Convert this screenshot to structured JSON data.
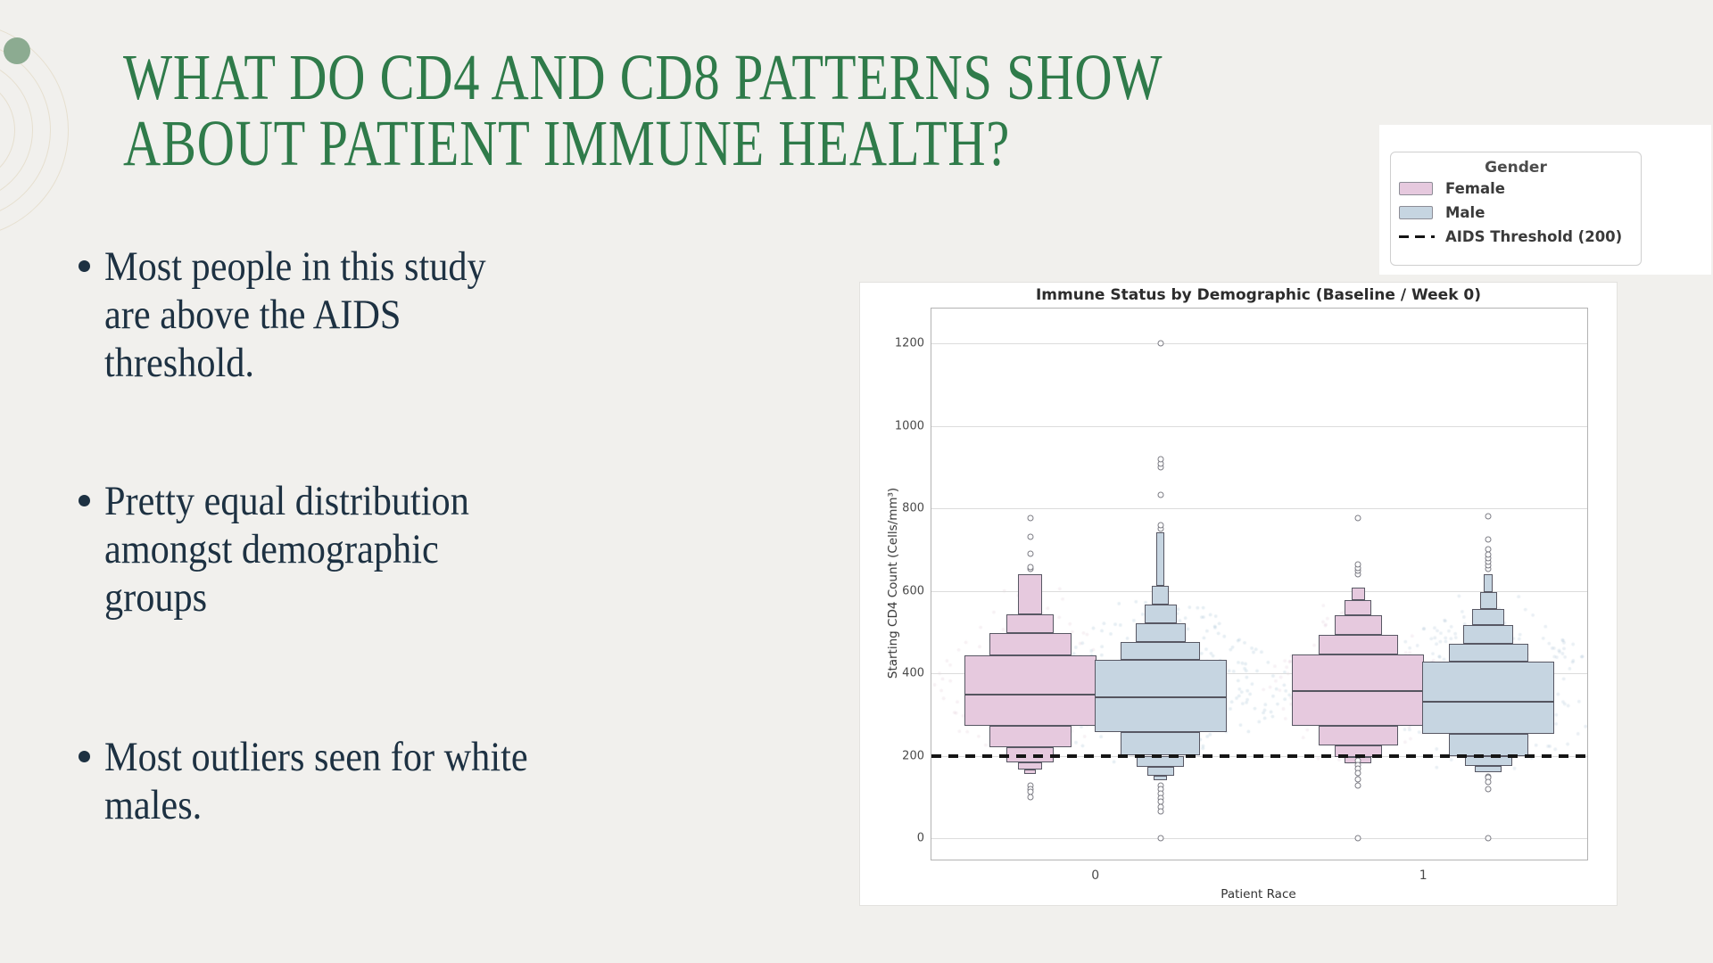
{
  "slide": {
    "background_color": "#f1f0ed",
    "accent_circle_color": "#8cab91",
    "title": {
      "color": "#2f7b4a",
      "lines": [
        "WHAT DO CD4 AND CD8 PATTERNS SHOW",
        "ABOUT PATIENT IMMUNE HEALTH?"
      ]
    },
    "bullets": {
      "color": "#1d3142",
      "items": [
        {
          "lines": [
            "Most people in this study",
            "are above the AIDS",
            "threshold."
          ]
        },
        {
          "lines": [
            "Pretty equal distribution",
            "amongst demographic",
            "groups"
          ]
        },
        {
          "lines": [
            "Most outliers seen for white",
            "males."
          ]
        }
      ]
    }
  },
  "legend": {
    "title": "Gender",
    "items": [
      {
        "label": "Female",
        "swatch": "box",
        "color": "#e6c9de"
      },
      {
        "label": "Male",
        "swatch": "box",
        "color": "#c6d5e1"
      },
      {
        "label": "AIDS Threshold (200)",
        "swatch": "dashed-line",
        "color": "#141414"
      }
    ]
  },
  "chart_data": {
    "type": "boxen",
    "title": "Immune Status by Demographic (Baseline / Week 0)",
    "xlabel": "Patient Race",
    "ylabel": "Starting CD4 Count (Cells/mm³)",
    "x_ticklabels": [
      "0",
      "1"
    ],
    "y_ticks": [
      0,
      200,
      400,
      600,
      800,
      1000,
      1200
    ],
    "ylim": [
      -52,
      1285
    ],
    "grid": "horizontal",
    "legend_position": "upper-right-outside",
    "threshold": {
      "value": 200,
      "label": "AIDS Threshold (200)",
      "style": "dashed-black"
    },
    "styles": {
      "female_fill": "#e6c9de",
      "male_fill": "#c6d5e1",
      "edge": "#585864",
      "median": "#55555f",
      "outlier": "#7c7c84",
      "grid": "#dcdcdc",
      "spine": "#b3b3b3",
      "threshold": "#151515"
    },
    "groups": [
      {
        "race": "0",
        "gender": "Female",
        "median": 348,
        "boxes": [
          [
            272,
            443,
            1.0
          ],
          [
            443,
            497,
            0.62
          ],
          [
            497,
            543,
            0.36
          ],
          [
            543,
            640,
            0.18
          ],
          [
            221,
            272,
            0.62
          ],
          [
            184,
            221,
            0.36
          ],
          [
            167,
            184,
            0.18
          ],
          [
            155,
            167,
            0.09
          ]
        ],
        "outliers_top": [
          652,
          658,
          690,
          731,
          776
        ],
        "outliers_bottom": [
          128,
          120,
          112,
          100
        ],
        "swarm": {
          "count": 150,
          "alpha": 0.15,
          "color": "#c79fb8",
          "spread": 115,
          "seed": 3
        }
      },
      {
        "race": "0",
        "gender": "Male",
        "median": 342,
        "boxes": [
          [
            258,
            432,
            1.0
          ],
          [
            432,
            476,
            0.6
          ],
          [
            476,
            521,
            0.38
          ],
          [
            521,
            566,
            0.24
          ],
          [
            566,
            612,
            0.13
          ],
          [
            612,
            742,
            0.06
          ],
          [
            200,
            258,
            0.6
          ],
          [
            172,
            200,
            0.36
          ],
          [
            152,
            172,
            0.2
          ],
          [
            140,
            152,
            0.1
          ]
        ],
        "outliers_top": [
          750,
          758,
          832,
          900,
          908,
          918,
          1200
        ],
        "outliers_bottom": [
          128,
          118,
          108,
          98,
          88,
          76,
          65,
          0
        ],
        "swarm": {
          "count": 260,
          "alpha": 0.22,
          "color": "#8fb0c9",
          "spread": 150,
          "seed": 7
        }
      },
      {
        "race": "1",
        "gender": "Female",
        "median": 357,
        "boxes": [
          [
            272,
            445,
            1.0
          ],
          [
            445,
            493,
            0.6
          ],
          [
            493,
            540,
            0.36
          ],
          [
            540,
            578,
            0.2
          ],
          [
            578,
            608,
            0.1
          ],
          [
            225,
            272,
            0.6
          ],
          [
            196,
            225,
            0.36
          ],
          [
            181,
            196,
            0.2
          ]
        ],
        "outliers_top": [
          640,
          648,
          656,
          664,
          776
        ],
        "outliers_bottom": [
          188,
          178,
          168,
          158,
          143,
          128,
          0
        ],
        "swarm": {
          "count": 140,
          "alpha": 0.14,
          "color": "#c79fb8",
          "spread": 110,
          "seed": 11
        }
      },
      {
        "race": "1",
        "gender": "Male",
        "median": 330,
        "boxes": [
          [
            252,
            428,
            1.0
          ],
          [
            428,
            471,
            0.6
          ],
          [
            471,
            516,
            0.38
          ],
          [
            516,
            556,
            0.24
          ],
          [
            556,
            596,
            0.13
          ],
          [
            596,
            640,
            0.07
          ],
          [
            198,
            252,
            0.6
          ],
          [
            176,
            198,
            0.36
          ],
          [
            161,
            176,
            0.2
          ]
        ],
        "outliers_top": [
          652,
          661,
          670,
          679,
          688,
          700,
          724,
          780
        ],
        "outliers_bottom": [
          150,
          146,
          137,
          120,
          0
        ],
        "swarm": {
          "count": 230,
          "alpha": 0.2,
          "color": "#8fb0c9",
          "spread": 145,
          "seed": 19
        }
      }
    ]
  }
}
